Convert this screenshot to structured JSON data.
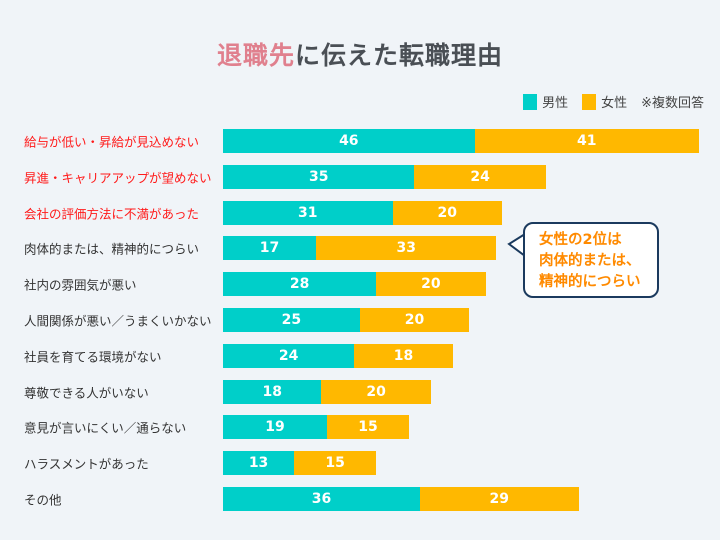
{
  "title": {
    "highlight": "退職先",
    "rest": "に伝えた転職理由"
  },
  "legend": {
    "note": "※複数回答"
  },
  "callout": {
    "lines": [
      "女性の2位は",
      "肉体的または、",
      "精神的につらい"
    ]
  },
  "chart_data": {
    "type": "bar",
    "orientation": "horizontal",
    "stacked": true,
    "title": "退職先に伝えた転職理由",
    "categories": [
      "給与が低い・昇給が見込めない",
      "昇進・キャリアアップが望めない",
      "会社の評価方法に不満があった",
      "肉体的または、精神的につらい",
      "社内の雰囲気が悪い",
      "人間関係が悪い／うまくいかない",
      "社員を育てる環境がない",
      "尊敬できる人がいない",
      "意見が言いにくい／通らない",
      "ハラスメントがあった",
      "その他"
    ],
    "highlighted_categories": [
      0,
      1,
      2
    ],
    "highlight_color": "#ff1a1a",
    "series": [
      {
        "name": "男性",
        "color": "#00cfc9",
        "values": [
          46,
          35,
          31,
          17,
          28,
          25,
          24,
          18,
          19,
          13,
          36
        ]
      },
      {
        "name": "女性",
        "color": "#ffb800",
        "values": [
          41,
          24,
          20,
          33,
          20,
          20,
          18,
          20,
          15,
          15,
          29
        ]
      }
    ],
    "legend_position": "top-right",
    "grid": false,
    "data_labels": true
  }
}
